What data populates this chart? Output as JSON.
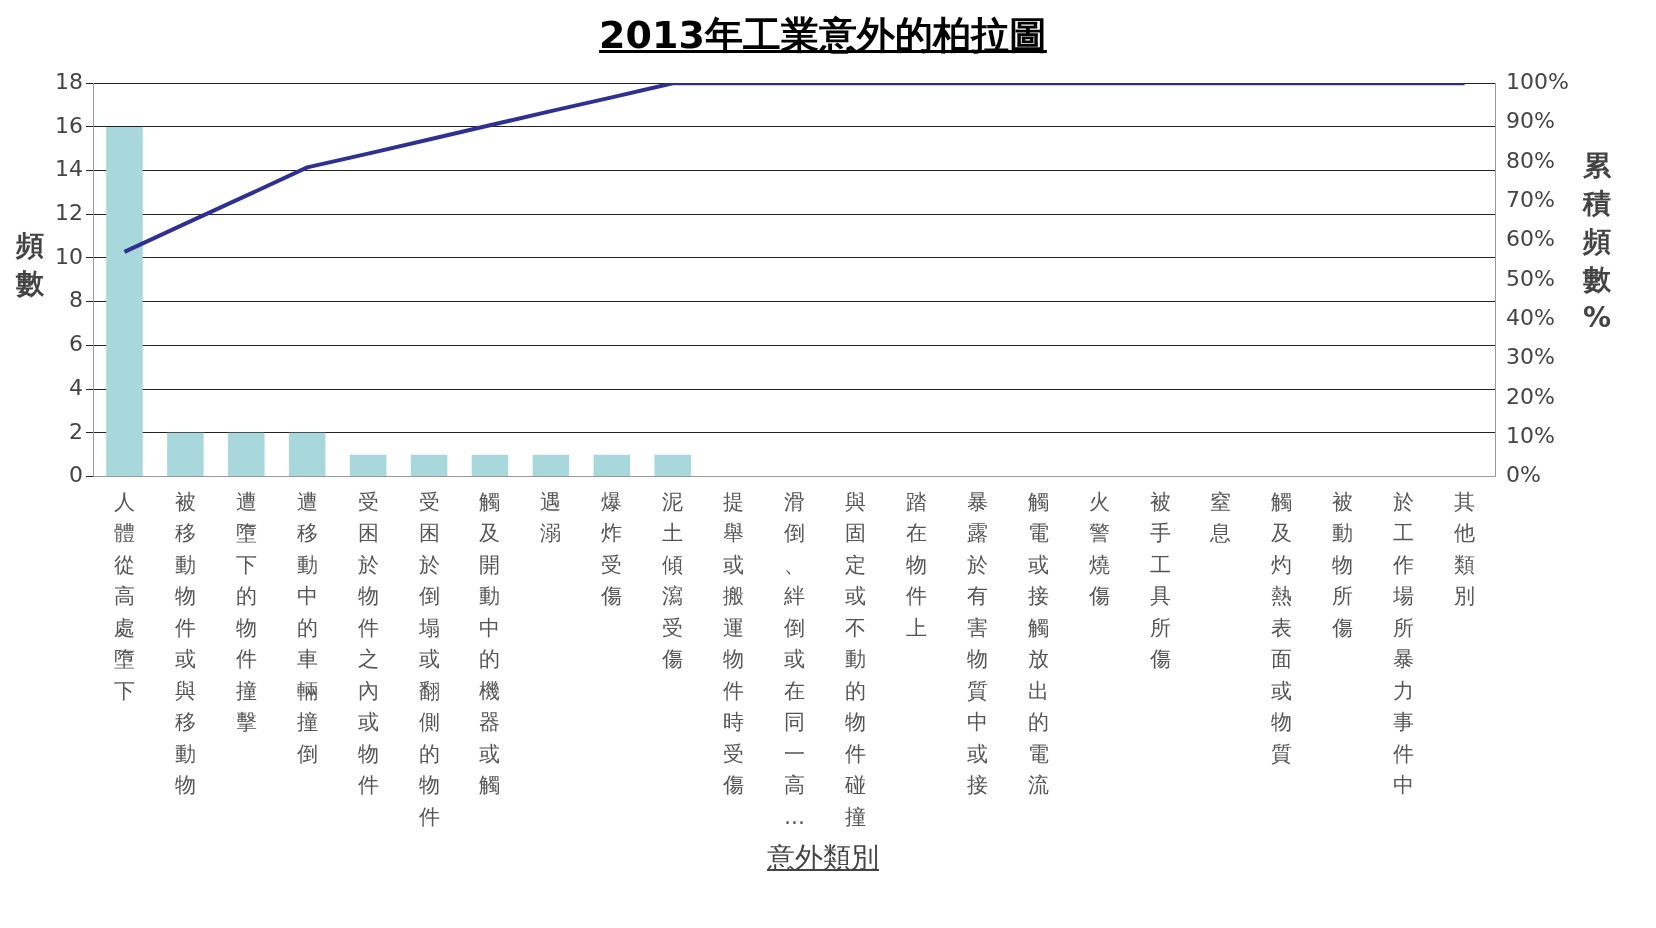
{
  "chart_data": {
    "type": "bar",
    "title": "2013年工業意外的柏拉圖",
    "xlabel": "意外類別",
    "ylabel": "頻數",
    "y2label": "累積頻數%",
    "categories": [
      "人體從高處墮下",
      "被移動物件或與移動物",
      "遭墮下的物件撞擊",
      "遭移動中的車輛撞倒",
      "受困於物件之內或物件",
      "受困於倒塌或翻側的物件",
      "觸及開動中的機器或觸",
      "遇溺",
      "爆炸受傷",
      "泥土傾瀉受傷",
      "提舉或搬運物件時受傷",
      "滑倒、絆倒或在同一高…",
      "與固定或不動的物件碰撞",
      "踏在物件上",
      "暴露於有害物質中或接",
      "觸電或接觸放出的電流",
      "火警燒傷",
      "被手工具所傷",
      "窒息",
      "觸及灼熱表面或物質",
      "被動物所傷",
      "於工作場所暴力事件中",
      "其他類別"
    ],
    "series": [
      {
        "color": "#a8d8dc",
        "values": [
          16,
          2,
          2,
          2,
          1,
          1,
          1,
          1,
          1,
          1,
          0,
          0,
          0,
          0,
          0,
          0,
          0,
          0,
          0,
          0,
          0,
          0,
          0
        ]
      },
      {
        "type": "line",
        "color": "#2e3192",
        "axis": "y2",
        "values": [
          57.1,
          64.3,
          71.4,
          78.6,
          82.1,
          85.7,
          89.3,
          92.9,
          96.4,
          100,
          100,
          100,
          100,
          100,
          100,
          100,
          100,
          100,
          100,
          100,
          100,
          100,
          100
        ]
      }
    ],
    "ylim": [
      0,
      18
    ],
    "yticks": [
      0,
      2,
      4,
      6,
      8,
      10,
      12,
      14,
      16,
      18
    ],
    "y2lim": [
      0,
      100
    ],
    "y2ticks": [
      {
        "value": 0,
        "label": "0%"
      },
      {
        "value": 10,
        "label": "10%"
      },
      {
        "value": 20,
        "label": "20%"
      },
      {
        "value": 30,
        "label": "30%"
      },
      {
        "value": 40,
        "label": "40%"
      },
      {
        "value": 50,
        "label": "50%"
      },
      {
        "value": 60,
        "label": "60%"
      },
      {
        "value": 70,
        "label": "70%"
      },
      {
        "value": 80,
        "label": "80%"
      },
      {
        "value": 90,
        "label": "90%"
      },
      {
        "value": 100,
        "label": "100%"
      }
    ],
    "grid": "y",
    "marker": "none",
    "line_style": "solid"
  }
}
